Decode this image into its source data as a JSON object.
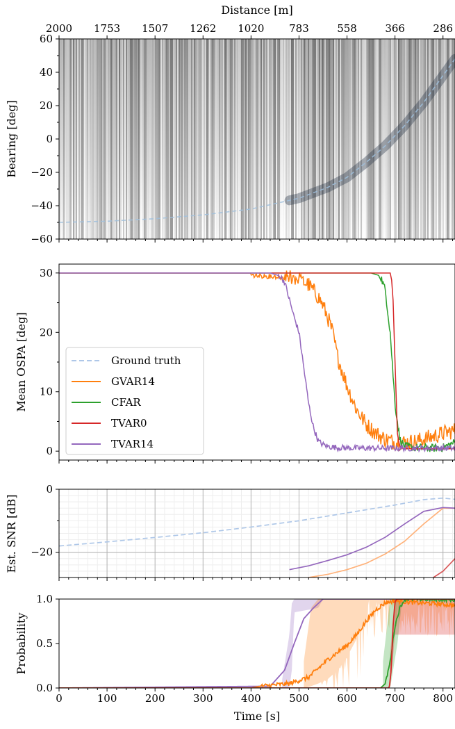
{
  "chart_data": [
    {
      "type": "heatmap",
      "xlabel_top": "Distance [m]",
      "top_ticks": [
        "2000",
        "1753",
        "1507",
        "1262",
        "1020",
        "783",
        "558",
        "366",
        "286"
      ],
      "top_tick_times": [
        0,
        100,
        200,
        300,
        400,
        500,
        600,
        700,
        800
      ],
      "ylabel": "Bearing [deg]",
      "ylim": [
        -60,
        60
      ],
      "yticks": [
        60,
        40,
        20,
        0,
        -20,
        -40,
        -60
      ],
      "xlim": [
        0,
        825
      ],
      "colormap": "grayscale",
      "overlay": {
        "name": "Ground truth",
        "style": "dashed",
        "color": "#9fbfdd",
        "x": [
          0,
          100,
          200,
          300,
          400,
          500,
          560,
          600,
          640,
          680,
          720,
          760,
          800,
          825
        ],
        "y": [
          -50,
          -49.3,
          -47.8,
          -45.5,
          -42,
          -35.5,
          -29,
          -23,
          -14,
          -4,
          8,
          22,
          38,
          48
        ]
      }
    },
    {
      "type": "line",
      "ylabel": "Mean OSPA [deg]",
      "ylim": [
        -1.5,
        31.5
      ],
      "yticks": [
        0,
        10,
        20,
        30
      ],
      "xlim": [
        0,
        825
      ],
      "legend_position": "lower-left",
      "series": [
        {
          "name": "Ground truth",
          "color": "#aec7e8",
          "style": "dashed",
          "x": [],
          "y": []
        },
        {
          "name": "GVAR14",
          "color": "#ff7f0e",
          "noise": 1.4,
          "x": [
            0,
            400,
            450,
            480,
            500,
            520,
            540,
            550,
            560,
            570,
            580,
            600,
            620,
            640,
            660,
            680,
            700,
            720,
            740,
            760,
            780,
            800,
            825
          ],
          "y": [
            30,
            30,
            29.8,
            29.5,
            29,
            28,
            26,
            24.5,
            22.5,
            20,
            16,
            11,
            7,
            4.5,
            3,
            2,
            1.5,
            1.5,
            1.6,
            2,
            2.5,
            3,
            3.5
          ]
        },
        {
          "name": "CFAR",
          "color": "#2ca02c",
          "noise": 0.7,
          "x": [
            0,
            650,
            670,
            680,
            690,
            700,
            710,
            720,
            740,
            780,
            800,
            825
          ],
          "y": [
            30,
            30,
            29.5,
            27,
            20,
            8,
            2,
            0.8,
            0.6,
            0.5,
            0.6,
            1.5
          ]
        },
        {
          "name": "TVAR0",
          "color": "#d62728",
          "noise": 0,
          "x": [
            0,
            690,
            695,
            700,
            705,
            710,
            720,
            825
          ],
          "y": [
            30,
            30,
            28,
            15,
            3,
            0.6,
            0.4,
            0.4
          ]
        },
        {
          "name": "TVAR14",
          "color": "#9467bd",
          "noise": 0.5,
          "x": [
            0,
            440,
            460,
            470,
            480,
            490,
            500,
            510,
            520,
            530,
            540,
            550,
            560,
            580,
            620,
            700,
            825
          ],
          "y": [
            30,
            30,
            29.5,
            28.5,
            25.5,
            22.5,
            20,
            14,
            8,
            4,
            1.7,
            1.1,
            0.8,
            0.6,
            0.5,
            0.5,
            0.5
          ]
        }
      ]
    },
    {
      "type": "line",
      "ylabel": "Est. SNR [dB]",
      "ylim": [
        -28,
        0
      ],
      "yticks": [
        0,
        -20
      ],
      "xlim": [
        0,
        825
      ],
      "grid": true,
      "series": [
        {
          "name": "Ground truth",
          "color": "#aec7e8",
          "style": "dashed",
          "x": [
            0,
            100,
            200,
            300,
            400,
            500,
            600,
            700,
            760,
            800,
            825
          ],
          "y": [
            -18,
            -16.7,
            -15.3,
            -13.8,
            -12,
            -10,
            -7.5,
            -5,
            -3.3,
            -2.8,
            -3.2
          ]
        },
        {
          "name": "GVAR14",
          "color": "#ffb27a",
          "x": [
            520,
            560,
            600,
            640,
            680,
            720,
            760,
            800,
            825
          ],
          "y": [
            -28,
            -27,
            -25.5,
            -23.5,
            -20.5,
            -16.5,
            -11,
            -6,
            -6
          ]
        },
        {
          "name": "TVAR0",
          "color": "#d9595a",
          "x": [
            780,
            800,
            825
          ],
          "y": [
            -28,
            -26,
            -22
          ]
        },
        {
          "name": "TVAR14",
          "color": "#9467bd",
          "x": [
            480,
            520,
            560,
            600,
            640,
            680,
            720,
            760,
            800,
            825
          ],
          "y": [
            -25.5,
            -24.3,
            -22.6,
            -20.8,
            -18.4,
            -15.2,
            -11,
            -7,
            -5.8,
            -6
          ]
        }
      ]
    },
    {
      "type": "area",
      "xlabel": "Time [s]",
      "ylabel": "Probability",
      "ylim": [
        0,
        1
      ],
      "yticks": [
        "0.0",
        "0.5",
        "1.0"
      ],
      "xticks": [
        0,
        100,
        200,
        300,
        400,
        500,
        600,
        700,
        800
      ],
      "xlim": [
        0,
        825
      ],
      "series": [
        {
          "name": "TVAR14",
          "color": "#9467bd",
          "x": [
            0,
            440,
            470,
            490,
            510,
            530,
            550,
            825
          ],
          "y": [
            0,
            0.02,
            0.2,
            0.5,
            0.78,
            0.9,
            1,
            1
          ],
          "band": {
            "x": [
              465,
              480,
              485,
              490,
              540,
              545,
              550
            ],
            "lo": [
              0,
              0,
              0.2,
              0.85,
              0.9,
              0.95,
              1
            ],
            "hi": [
              0.1,
              0.6,
              0.95,
              1,
              1,
              1,
              1
            ]
          }
        },
        {
          "name": "GVAR14",
          "color": "#ff7f0e",
          "x": [
            0,
            400,
            420,
            440,
            460,
            480,
            520,
            560,
            580,
            600,
            620,
            640,
            660,
            680,
            700,
            740,
            780,
            825
          ],
          "y": [
            0,
            0,
            0.02,
            0.03,
            0.04,
            0.05,
            0.12,
            0.32,
            0.4,
            0.48,
            0.6,
            0.75,
            0.88,
            0.96,
            0.98,
            0.96,
            0.95,
            0.93
          ],
          "band": {
            "x": [
              510,
              525,
              540,
              560,
              580,
              600,
              620,
              640,
              825
            ],
            "lo": [
              0,
              0.02,
              0.05,
              0.1,
              0.2,
              0.35,
              0.55,
              0.8,
              0.85
            ],
            "hi": [
              0.3,
              0.9,
              1,
              1,
              1,
              1,
              1,
              1,
              1
            ]
          }
        },
        {
          "name": "CFAR",
          "color": "#2ca02c",
          "x": [
            0,
            670,
            680,
            690,
            700,
            710,
            720,
            825
          ],
          "y": [
            0,
            0,
            0.05,
            0.3,
            0.7,
            0.9,
            1,
            0.99
          ],
          "band": {
            "x": [
              675,
              690,
              705,
              715
            ],
            "lo": [
              0,
              0,
              0.5,
              1
            ],
            "hi": [
              0.3,
              1,
              1,
              1
            ]
          }
        },
        {
          "name": "TVAR0",
          "color": "#d62728",
          "x": [
            0,
            688,
            692,
            696,
            700,
            704,
            825
          ],
          "y": [
            0,
            0,
            0.2,
            0.7,
            0.97,
            1,
            1
          ],
          "band": {
            "x": [
              690,
              700
            ],
            "lo": [
              0,
              0.6
            ],
            "hi": [
              0.4,
              1
            ]
          }
        }
      ]
    }
  ]
}
